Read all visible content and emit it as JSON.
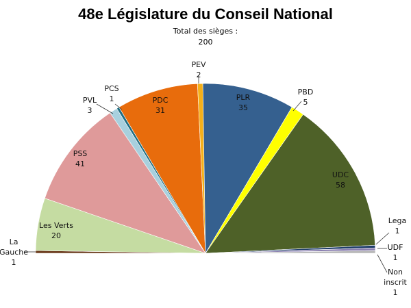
{
  "chart_data": {
    "type": "pie",
    "variant": "half-donut (hemicycle)",
    "title": "48e Législature du Conseil National",
    "subtitle_lines": [
      "Total des sièges :",
      "200"
    ],
    "total": 200,
    "slices": [
      {
        "name": "La Gauche",
        "value": 1,
        "color": "#6b3a1c"
      },
      {
        "name": "Les Verts",
        "value": 20,
        "color": "#c5dca2"
      },
      {
        "name": "PSS",
        "value": 41,
        "color": "#df9a9a"
      },
      {
        "name": "PVL",
        "value": 3,
        "color": "#a8d0de"
      },
      {
        "name": "PCS",
        "value": 1,
        "color": "#1f6e82"
      },
      {
        "name": "PDC",
        "value": 31,
        "color": "#e86c0c"
      },
      {
        "name": "PEV",
        "value": 2,
        "color": "#f5b019"
      },
      {
        "name": "PLR",
        "value": 35,
        "color": "#35608f"
      },
      {
        "name": "PBD",
        "value": 5,
        "color": "#ffff00"
      },
      {
        "name": "UDC",
        "value": 58,
        "color": "#4e6128"
      },
      {
        "name": "Lega",
        "value": 1,
        "color": "#1f3d6a"
      },
      {
        "name": "UDF",
        "value": 1,
        "color": "#8a7fb0"
      },
      {
        "name": "Non inscrit",
        "value": 1,
        "color": "#b7b7b7"
      }
    ],
    "label_lines": {
      "La Gauche": [
        "La",
        "Gauche",
        "1"
      ],
      "Les Verts": [
        "Les Verts",
        "20"
      ],
      "PSS": [
        "PSS",
        "41"
      ],
      "PVL": [
        "PVL",
        "3"
      ],
      "PCS": [
        "PCS",
        "1"
      ],
      "PDC": [
        "PDC",
        "31"
      ],
      "PEV": [
        "PEV",
        "2"
      ],
      "PLR": [
        "PLR",
        "35"
      ],
      "PBD": [
        "PBD",
        "5"
      ],
      "UDC": [
        "UDC",
        "58"
      ],
      "Lega": [
        "Lega",
        "1"
      ],
      "UDF": [
        "UDF",
        "1"
      ],
      "Non inscrit": [
        "Non",
        "inscrit",
        "1"
      ]
    },
    "legend": "none (data labels on slices)"
  }
}
